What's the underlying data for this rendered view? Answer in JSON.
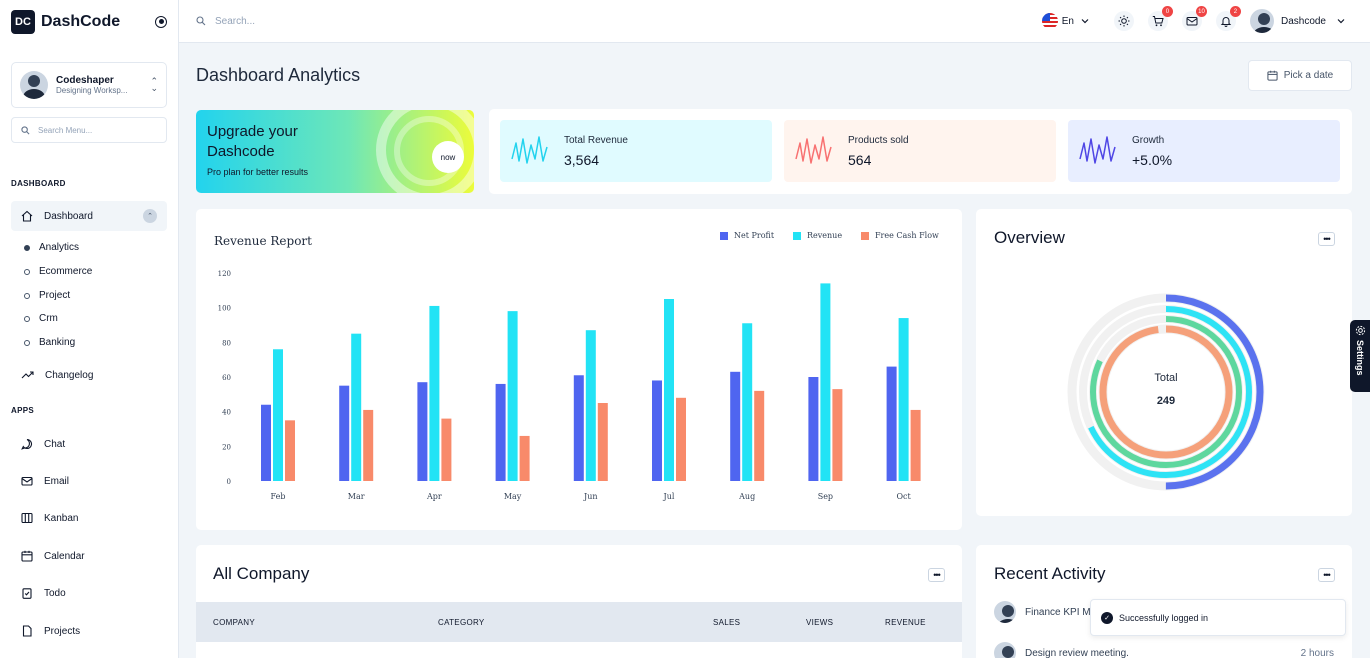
{
  "app": {
    "logo_mark": "DC",
    "name": "DashCode"
  },
  "profile": {
    "name": "Codeshaper",
    "subtitle": "Designing Worksp..."
  },
  "sidebar": {
    "search_placeholder": "Search Menu...",
    "sections": {
      "dashboard": "DASHBOARD",
      "apps": "APPS"
    },
    "dashboard_item": "Dashboard",
    "sub_items": [
      "Analytics",
      "Ecommerce",
      "Project",
      "Crm",
      "Banking"
    ],
    "changelog": "Changelog",
    "apps_items": [
      "Chat",
      "Email",
      "Kanban",
      "Calendar",
      "Todo",
      "Projects"
    ]
  },
  "header": {
    "search_placeholder": "Search...",
    "language": "En",
    "cart_badge": "0",
    "mail_badge": "10",
    "notification_badge": "2",
    "user_name": "Dashcode"
  },
  "page": {
    "title": "Dashboard Analytics",
    "date_button": "Pick a date"
  },
  "upgrade": {
    "title": "Upgrade your Dashcode",
    "subtitle": "Pro plan for better results",
    "badge": "now"
  },
  "stats": [
    {
      "label": "Total Revenue",
      "value": "3,564",
      "color": "#22d3ee",
      "bg": "#e0fbff"
    },
    {
      "label": "Products sold",
      "value": "564",
      "color": "#f87171",
      "bg": "#fff4ee"
    },
    {
      "label": "Growth",
      "value": "+5.0%",
      "color": "#4f46e5",
      "bg": "#e8eeff"
    }
  ],
  "revenue_report": {
    "title": "Revenue Report",
    "legend": [
      {
        "name": "Net Profit",
        "color": "#4f65f0"
      },
      {
        "name": "Revenue",
        "color": "#22e3f5"
      },
      {
        "name": "Free Cash Flow",
        "color": "#f88a6a"
      }
    ]
  },
  "chart_data": {
    "type": "bar",
    "title": "Revenue Report",
    "categories": [
      "Feb",
      "Mar",
      "Apr",
      "May",
      "Jun",
      "Jul",
      "Aug",
      "Sep",
      "Oct"
    ],
    "series": [
      {
        "name": "Net Profit",
        "values": [
          44,
          55,
          57,
          56,
          61,
          58,
          63,
          60,
          66
        ]
      },
      {
        "name": "Revenue",
        "values": [
          76,
          85,
          101,
          98,
          87,
          105,
          91,
          114,
          94
        ]
      },
      {
        "name": "Free Cash Flow",
        "values": [
          35,
          41,
          36,
          26,
          45,
          48,
          52,
          53,
          41
        ]
      }
    ],
    "ylim": [
      0,
      120
    ],
    "yticks": [
      0,
      20,
      40,
      60,
      80,
      100,
      120
    ],
    "grid": false,
    "legend_position": "top-right"
  },
  "overview": {
    "title": "Overview",
    "total_label": "Total",
    "total_value": "249",
    "rings": [
      {
        "color": "#5b72ee",
        "fraction": 0.5
      },
      {
        "color": "#2ee3f5",
        "fraction": 0.68
      },
      {
        "color": "#5ed79e",
        "fraction": 0.82
      },
      {
        "color": "#f5a07a",
        "fraction": 0.98
      }
    ]
  },
  "company": {
    "title": "All Company",
    "columns": [
      "COMPANY",
      "CATEGORY",
      "SALES",
      "VIEWS",
      "REVENUE"
    ]
  },
  "activity": {
    "title": "Recent Activity",
    "items": [
      {
        "text": "Finance KPI M",
        "time": ""
      },
      {
        "text": "Design review meeting.",
        "time": "2 hours"
      }
    ]
  },
  "settings_tab": "Settings",
  "toast": "Successfully logged in"
}
